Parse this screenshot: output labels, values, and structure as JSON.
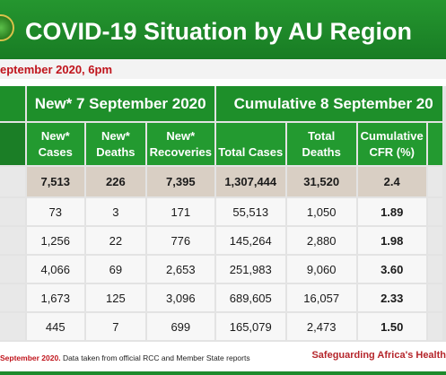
{
  "banner": {
    "title": "COVID-19 Situation by AU Region",
    "date_line": "eptember 2020, 6pm"
  },
  "table": {
    "group_new": "New* 7 September 2020",
    "group_cumulative": "Cumulative 8 September 20",
    "headers": {
      "new_cases": [
        "New*",
        "Cases"
      ],
      "new_deaths": [
        "New*",
        "Deaths"
      ],
      "new_recoveries": [
        "New*",
        "Recoveries"
      ],
      "total_cases": "Total Cases",
      "total_deaths": [
        "Total",
        "Deaths"
      ],
      "cfr": [
        "Cumulative",
        "CFR (%)"
      ]
    },
    "totals": [
      "7,513",
      "226",
      "7,395",
      "1,307,444",
      "31,520",
      "2.4"
    ],
    "rows": [
      [
        "73",
        "3",
        "171",
        "55,513",
        "1,050",
        "1.89"
      ],
      [
        "1,256",
        "22",
        "776",
        "145,264",
        "2,880",
        "1.98"
      ],
      [
        "4,066",
        "69",
        "2,653",
        "251,983",
        "9,060",
        "3.60"
      ],
      [
        "1,673",
        "125",
        "3,096",
        "689,605",
        "16,057",
        "2.33"
      ],
      [
        "445",
        "7",
        "699",
        "165,079",
        "2,473",
        "1.50"
      ]
    ]
  },
  "footer": {
    "left_red": "September 2020.",
    "left_text": " Data taken from official RCC and Member State reports",
    "right": "Safeguarding Africa's Health"
  }
}
